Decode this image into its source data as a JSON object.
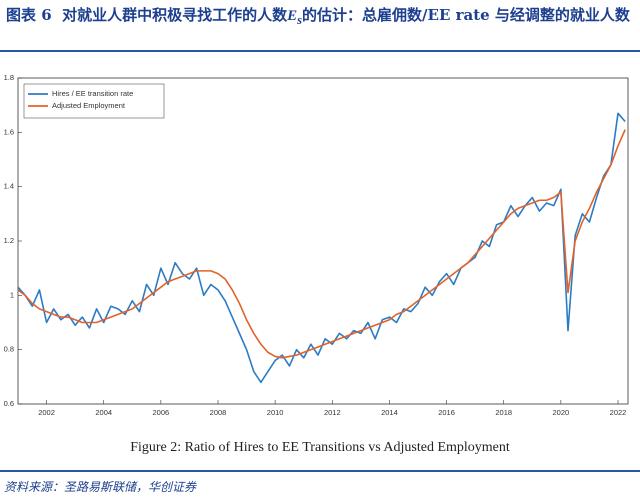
{
  "header": {
    "label": "图表 6",
    "title_before": "对就业人群中积极寻找工作的人数",
    "var": "E",
    "sub": "s",
    "title_after": "的估计：总雇佣数/EE rate 与经调整的就业人数"
  },
  "chart_data": {
    "type": "line",
    "x": [
      2001.0,
      2001.25,
      2001.5,
      2001.75,
      2002.0,
      2002.25,
      2002.5,
      2002.75,
      2003.0,
      2003.25,
      2003.5,
      2003.75,
      2004.0,
      2004.25,
      2004.5,
      2004.75,
      2005.0,
      2005.25,
      2005.5,
      2005.75,
      2006.0,
      2006.25,
      2006.5,
      2006.75,
      2007.0,
      2007.25,
      2007.5,
      2007.75,
      2008.0,
      2008.25,
      2008.5,
      2008.75,
      2009.0,
      2009.25,
      2009.5,
      2009.75,
      2010.0,
      2010.25,
      2010.5,
      2010.75,
      2011.0,
      2011.25,
      2011.5,
      2011.75,
      2012.0,
      2012.25,
      2012.5,
      2012.75,
      2013.0,
      2013.25,
      2013.5,
      2013.75,
      2014.0,
      2014.25,
      2014.5,
      2014.75,
      2015.0,
      2015.25,
      2015.5,
      2015.75,
      2016.0,
      2016.25,
      2016.5,
      2016.75,
      2017.0,
      2017.25,
      2017.5,
      2017.75,
      2018.0,
      2018.25,
      2018.5,
      2018.75,
      2019.0,
      2019.25,
      2019.5,
      2019.75,
      2020.0,
      2020.25,
      2020.5,
      2020.75,
      2021.0,
      2021.25,
      2021.5,
      2021.75,
      2022.0,
      2022.25
    ],
    "series": [
      {
        "name": "Hires / EE transition rate",
        "color": "#2b7cc4",
        "values": [
          1.03,
          1.0,
          0.96,
          1.02,
          0.9,
          0.95,
          0.91,
          0.93,
          0.89,
          0.92,
          0.88,
          0.95,
          0.9,
          0.96,
          0.95,
          0.93,
          0.98,
          0.94,
          1.04,
          1.0,
          1.1,
          1.04,
          1.12,
          1.08,
          1.06,
          1.1,
          1.0,
          1.04,
          1.02,
          0.98,
          0.92,
          0.86,
          0.8,
          0.72,
          0.68,
          0.72,
          0.76,
          0.78,
          0.74,
          0.8,
          0.77,
          0.82,
          0.78,
          0.84,
          0.82,
          0.86,
          0.84,
          0.87,
          0.86,
          0.9,
          0.84,
          0.91,
          0.92,
          0.9,
          0.95,
          0.94,
          0.97,
          1.03,
          1.0,
          1.05,
          1.08,
          1.04,
          1.1,
          1.12,
          1.14,
          1.2,
          1.18,
          1.26,
          1.27,
          1.33,
          1.29,
          1.33,
          1.36,
          1.31,
          1.34,
          1.33,
          1.39,
          0.87,
          1.22,
          1.3,
          1.27,
          1.36,
          1.44,
          1.48,
          1.67,
          1.64
        ]
      },
      {
        "name": "Adjusted Employment",
        "color": "#e2622b",
        "values": [
          1.02,
          1.0,
          0.97,
          0.95,
          0.94,
          0.93,
          0.92,
          0.92,
          0.91,
          0.9,
          0.9,
          0.9,
          0.91,
          0.92,
          0.93,
          0.94,
          0.95,
          0.97,
          0.99,
          1.01,
          1.03,
          1.05,
          1.06,
          1.07,
          1.08,
          1.09,
          1.09,
          1.09,
          1.08,
          1.06,
          1.02,
          0.97,
          0.91,
          0.86,
          0.82,
          0.79,
          0.775,
          0.77,
          0.775,
          0.78,
          0.79,
          0.8,
          0.81,
          0.82,
          0.83,
          0.84,
          0.85,
          0.86,
          0.87,
          0.88,
          0.89,
          0.9,
          0.91,
          0.93,
          0.94,
          0.96,
          0.98,
          1.0,
          1.02,
          1.04,
          1.06,
          1.08,
          1.1,
          1.12,
          1.15,
          1.18,
          1.21,
          1.24,
          1.27,
          1.3,
          1.32,
          1.33,
          1.34,
          1.35,
          1.35,
          1.36,
          1.38,
          1.01,
          1.2,
          1.27,
          1.32,
          1.38,
          1.43,
          1.48,
          1.55,
          1.61
        ]
      }
    ],
    "xlim": [
      2001,
      2022.35
    ],
    "xticks": [
      2002,
      2004,
      2006,
      2008,
      2010,
      2012,
      2014,
      2016,
      2018,
      2020,
      2022
    ],
    "ylim": [
      0.6,
      1.8
    ],
    "yticks": [
      0.6,
      0.8,
      1,
      1.2,
      1.4,
      1.6,
      1.8
    ],
    "grid": false,
    "legend": "top-left"
  },
  "caption": "Figure 2: Ratio of Hires to EE Transitions vs Adjusted Employment",
  "source": "资料来源：圣路易斯联储，华创证券"
}
